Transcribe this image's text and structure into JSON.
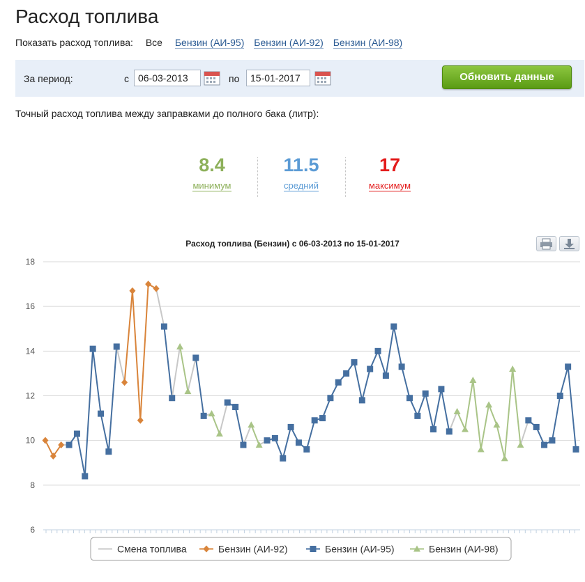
{
  "page": {
    "title": "Расход топлива",
    "filter_label": "Показать расход топлива:",
    "filter_all": "Все",
    "filter_links": [
      "Бензин (АИ-95)",
      "Бензин (АИ-92)",
      "Бензин (АИ-98)"
    ]
  },
  "period": {
    "label": "За период:",
    "from_label": "с",
    "from_value": "06-03-2013",
    "to_label": "по",
    "to_value": "15-01-2017",
    "update_button": "Обновить данные"
  },
  "description": "Точный расход топлива между заправками до полного бака (литр):",
  "stats": {
    "min": {
      "value": "8.4",
      "label": "минимум",
      "color": "#8db05a"
    },
    "avg": {
      "value": "11.5",
      "label": "средний",
      "color": "#5b9bd5"
    },
    "max": {
      "value": "17",
      "label": "максимум",
      "color": "#e31b1b"
    }
  },
  "toolbar_icons": [
    "print-icon",
    "download-icon"
  ],
  "chart_data": {
    "type": "line",
    "title": "Расход топлива (Бензин) с 06-03-2013 по 15-01-2017",
    "xlabel": "",
    "ylabel": "",
    "ylim": [
      6,
      18
    ],
    "yticks": [
      6,
      8,
      10,
      12,
      14,
      16,
      18
    ],
    "grid": true,
    "legend_position": "bottom",
    "colors": {
      "change": "#c8c8c8",
      "ai92": "#d9843a",
      "ai95": "#456fa0",
      "ai98": "#a9c487"
    },
    "values": [
      10.0,
      9.3,
      9.8,
      9.8,
      10.3,
      8.4,
      14.1,
      11.2,
      9.5,
      14.2,
      12.6,
      16.7,
      10.9,
      17.0,
      16.8,
      15.1,
      11.9,
      14.2,
      12.2,
      13.7,
      11.1,
      11.2,
      10.3,
      11.7,
      11.5,
      9.8,
      10.7,
      9.8,
      10.0,
      10.1,
      9.2,
      10.6,
      9.9,
      9.6,
      10.9,
      11.0,
      11.9,
      12.6,
      13.0,
      13.5,
      11.8,
      13.2,
      14.0,
      12.9,
      15.1,
      13.3,
      11.9,
      11.1,
      12.1,
      10.5,
      12.3,
      10.4,
      11.3,
      10.5,
      12.7,
      9.6,
      11.6,
      10.7,
      9.2,
      13.2,
      9.8,
      10.9,
      10.6,
      9.8,
      10.0,
      12.0,
      13.3,
      9.6
    ],
    "fuel": [
      "92",
      "92",
      "92",
      "95",
      "95",
      "95",
      "95",
      "95",
      "95",
      "95",
      "92",
      "92",
      "92",
      "92",
      "92",
      "95",
      "95",
      "98",
      "98",
      "95",
      "95",
      "98",
      "98",
      "95",
      "95",
      "95",
      "98",
      "98",
      "95",
      "95",
      "95",
      "95",
      "95",
      "95",
      "95",
      "95",
      "95",
      "95",
      "95",
      "95",
      "95",
      "95",
      "95",
      "95",
      "95",
      "95",
      "95",
      "95",
      "95",
      "95",
      "95",
      "95",
      "98",
      "98",
      "98",
      "98",
      "98",
      "98",
      "98",
      "98",
      "98",
      "95",
      "95",
      "95",
      "95",
      "95",
      "95",
      "95"
    ],
    "series": [
      {
        "name": "Смена топлива",
        "key": "change"
      },
      {
        "name": "Бензин (АИ-92)",
        "key": "ai92"
      },
      {
        "name": "Бензин (АИ-95)",
        "key": "ai95"
      },
      {
        "name": "Бензин (АИ-98)",
        "key": "ai98"
      }
    ]
  }
}
